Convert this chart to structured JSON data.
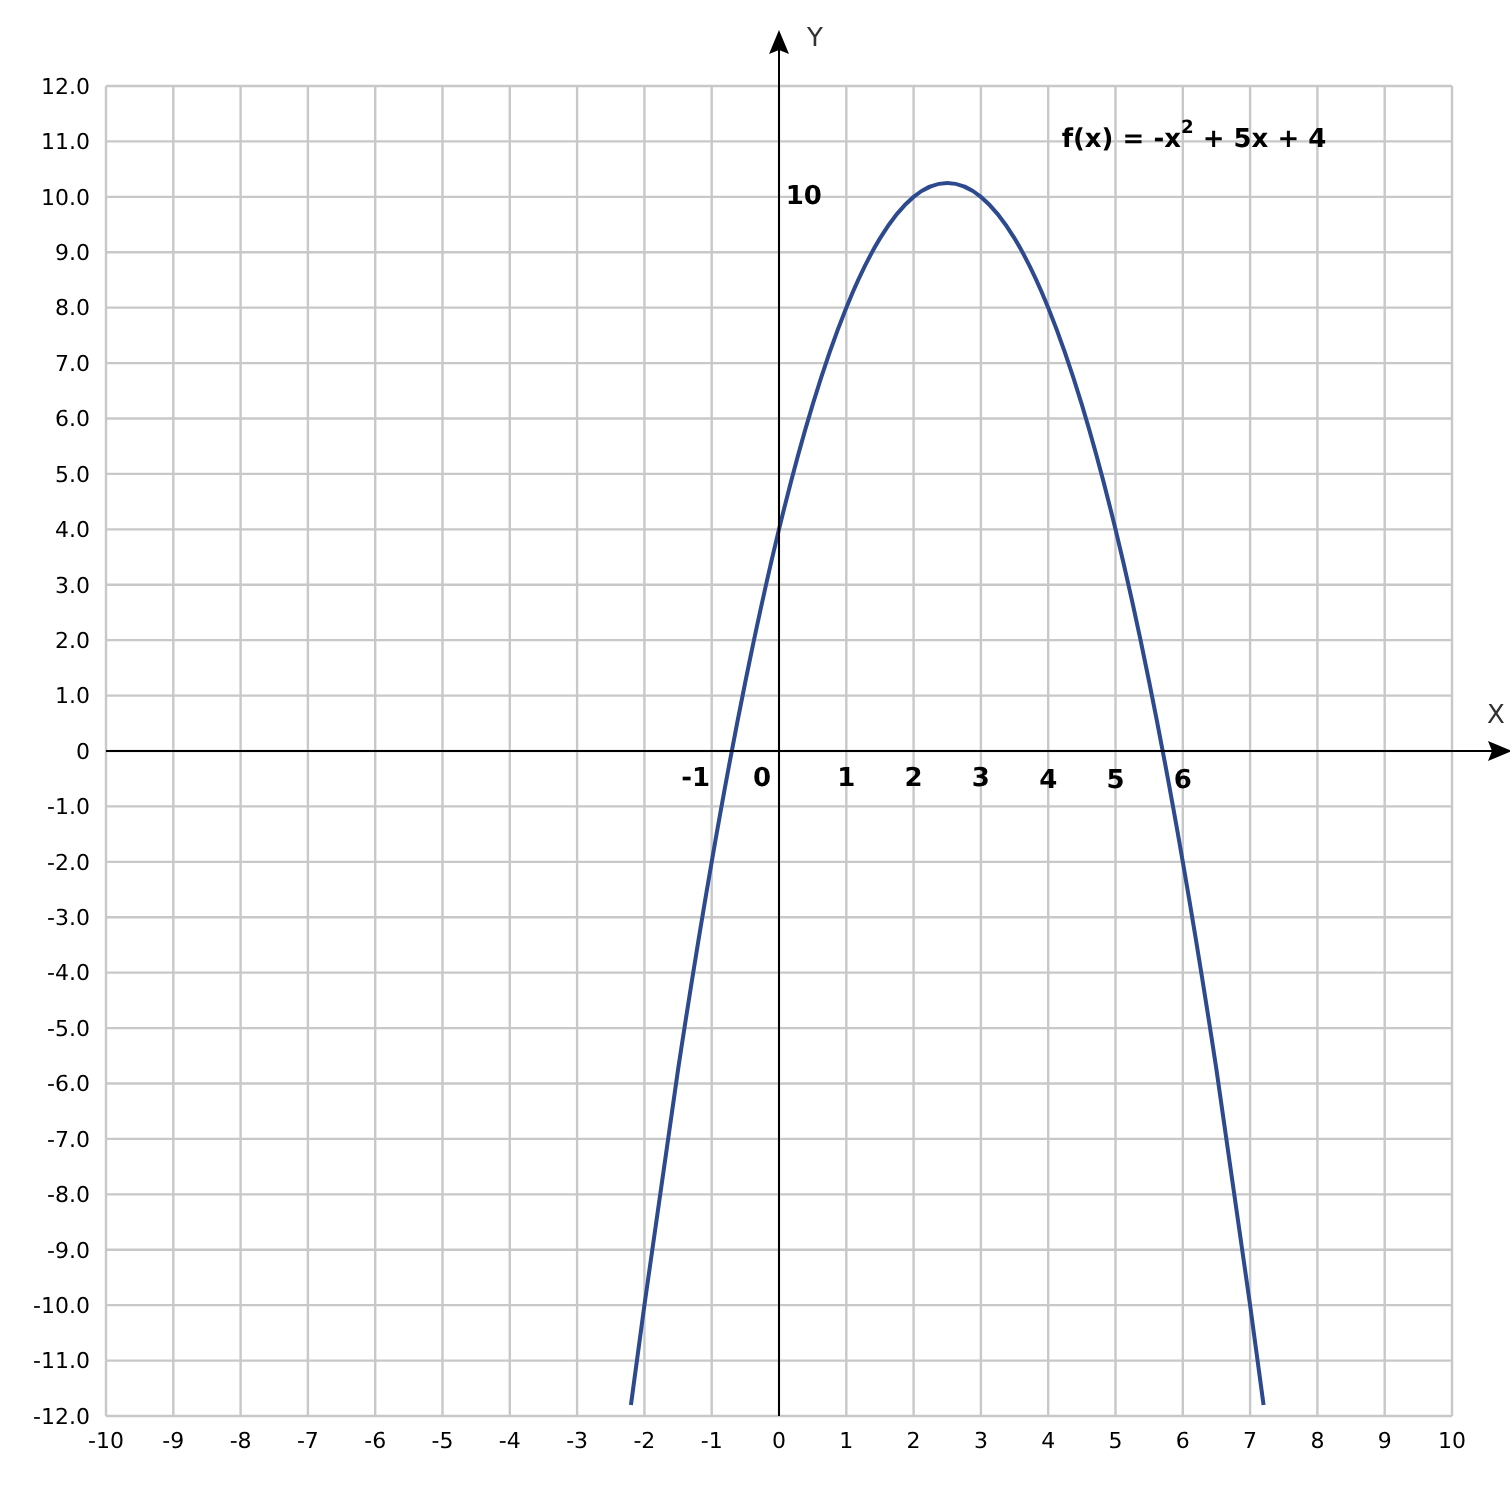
{
  "chart_data": {
    "type": "line",
    "xlabel": "X",
    "ylabel": "Y",
    "xlim": [
      -10,
      10
    ],
    "ylim": [
      -12,
      12
    ],
    "xticks": [
      -10,
      -9,
      -8,
      -7,
      -6,
      -5,
      -4,
      -3,
      -2,
      -1,
      0,
      1,
      2,
      3,
      4,
      5,
      6,
      7,
      8,
      9,
      10
    ],
    "yticks": [
      {
        "value": -12,
        "label": "-12.0"
      },
      {
        "value": -11,
        "label": "-11.0"
      },
      {
        "value": -10,
        "label": "-10.0"
      },
      {
        "value": -9,
        "label": "-9.0"
      },
      {
        "value": -8,
        "label": "-8.0"
      },
      {
        "value": -7,
        "label": "-7.0"
      },
      {
        "value": -6,
        "label": "-6.0"
      },
      {
        "value": -5,
        "label": "-5.0"
      },
      {
        "value": -4,
        "label": "-4.0"
      },
      {
        "value": -3,
        "label": "-3.0"
      },
      {
        "value": -2,
        "label": "-2.0"
      },
      {
        "value": -1,
        "label": "-1.0"
      },
      0,
      {
        "value": 1,
        "label": "1.0"
      },
      {
        "value": 2,
        "label": "2.0"
      },
      {
        "value": 3,
        "label": "3.0"
      },
      {
        "value": 4,
        "label": "4.0"
      },
      {
        "value": 5,
        "label": "5.0"
      },
      {
        "value": 6,
        "label": "6.0"
      },
      {
        "value": 7,
        "label": "7.0"
      },
      {
        "value": 8,
        "label": "8.0"
      },
      {
        "value": 9,
        "label": "9.0"
      },
      {
        "value": 10,
        "label": "10.0"
      },
      {
        "value": 11,
        "label": "11.0"
      },
      {
        "value": 12,
        "label": "12.0"
      }
    ],
    "grid": true,
    "marker": "none",
    "line_style": "solid",
    "x": [
      -2.2,
      -2,
      -1.5,
      -1,
      -0.5,
      0,
      0.5,
      1,
      1.5,
      2,
      2.5,
      3,
      3.5,
      4,
      4.5,
      5,
      5.5,
      6,
      6.5,
      7,
      7.2
    ],
    "series": [
      {
        "color": "#2e4a8e",
        "values": [
          -11.8,
          -10,
          -5.75,
          -2,
          1.25,
          4,
          6.25,
          8,
          9.25,
          10,
          10.25,
          10,
          9.25,
          8,
          6.25,
          4,
          1.25,
          -2,
          -5.75,
          -10,
          -11.8
        ]
      }
    ],
    "annotations": [
      "f(x) = -x$^{2}$ + 5x + 4",
      "10",
      "-1",
      "0",
      "1",
      "2",
      "3",
      "4",
      "5",
      "6"
    ]
  }
}
